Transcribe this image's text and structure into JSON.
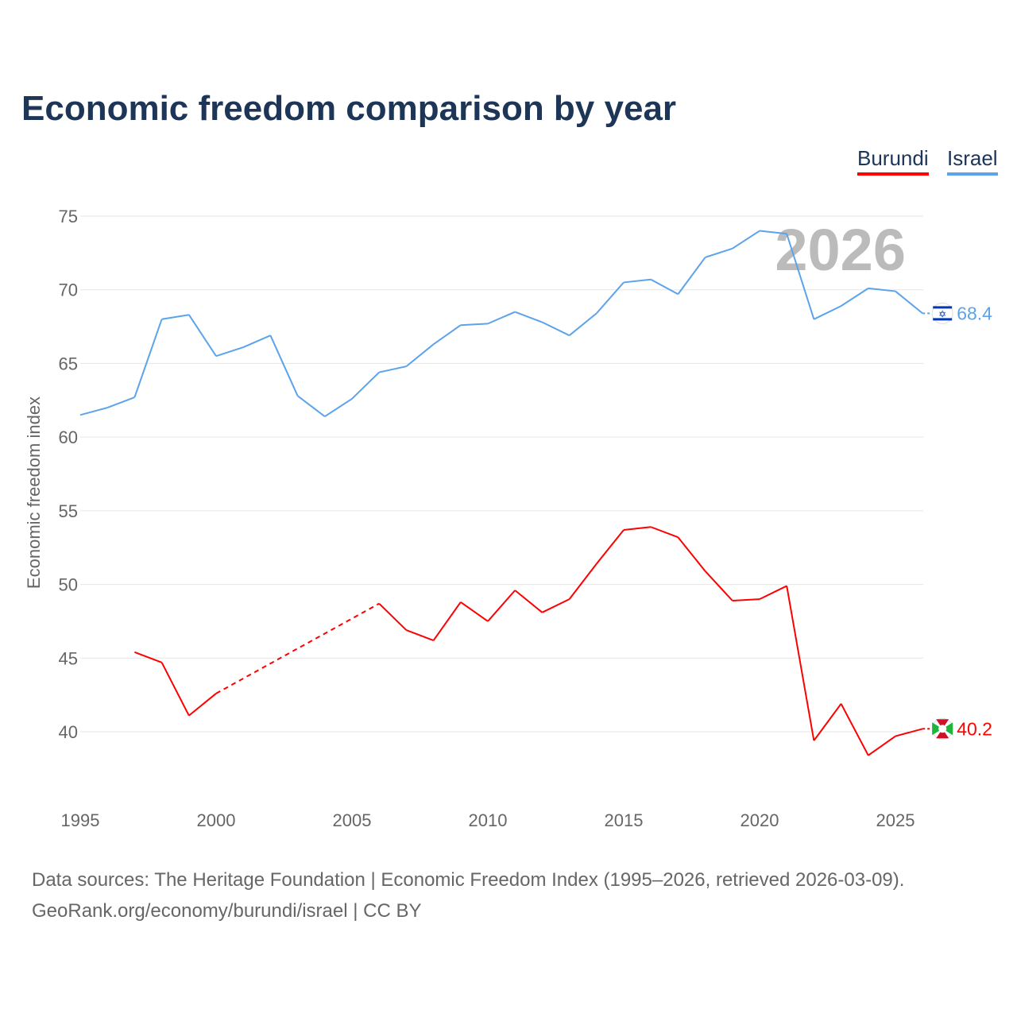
{
  "title": "Economic freedom comparison by year",
  "legend": [
    {
      "name": "Burundi",
      "color": "#ff0000"
    },
    {
      "name": "Israel",
      "color": "#5ba3ea"
    }
  ],
  "year_watermark": "2026",
  "sources": [
    "Data sources: The Heritage Foundation | Economic Freedom Index (1995–2026, retrieved 2026-03-09).",
    "GeoRank.org/economy/burundi/israel | CC BY"
  ],
  "chart_data": {
    "type": "line",
    "title": "Economic freedom comparison by year",
    "ylabel": "Economic freedom index",
    "xlabel": "",
    "xlim": [
      1995,
      2026
    ],
    "ylim": [
      36,
      76
    ],
    "xticks": [
      "1995",
      "2000",
      "2005",
      "2010",
      "2015",
      "2020",
      "2025"
    ],
    "yticks": [
      "40",
      "45",
      "50",
      "55",
      "60",
      "65",
      "70",
      "75"
    ],
    "grid": true,
    "legend_position": "top-right",
    "x": [
      1995,
      1996,
      1997,
      1998,
      1999,
      2000,
      2001,
      2002,
      2003,
      2004,
      2005,
      2006,
      2007,
      2008,
      2009,
      2010,
      2011,
      2012,
      2013,
      2014,
      2015,
      2016,
      2017,
      2018,
      2019,
      2020,
      2021,
      2022,
      2023,
      2024,
      2025,
      2026
    ],
    "series": [
      {
        "name": "Israel",
        "color": "#5ba3ea",
        "end_label": "68.4",
        "values": [
          61.5,
          62.0,
          62.7,
          68.0,
          68.3,
          65.5,
          66.1,
          66.9,
          62.8,
          61.4,
          62.6,
          64.4,
          64.8,
          66.3,
          67.6,
          67.7,
          68.5,
          67.8,
          66.9,
          68.4,
          70.5,
          70.7,
          69.7,
          72.2,
          72.8,
          74.0,
          73.8,
          68.0,
          68.9,
          70.1,
          69.9,
          68.4
        ]
      },
      {
        "name": "Burundi",
        "color": "#ff0000",
        "end_label": "40.2",
        "values": [
          null,
          null,
          45.4,
          44.7,
          41.1,
          42.6,
          null,
          null,
          null,
          null,
          null,
          48.7,
          46.9,
          46.2,
          48.8,
          47.5,
          49.6,
          48.1,
          49.0,
          51.4,
          53.7,
          53.9,
          53.2,
          50.9,
          48.9,
          49.0,
          49.9,
          39.4,
          41.9,
          38.4,
          39.7,
          40.2
        ]
      }
    ]
  }
}
